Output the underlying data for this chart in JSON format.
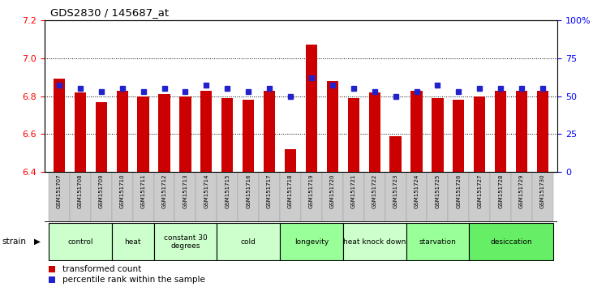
{
  "title": "GDS2830 / 145687_at",
  "samples": [
    "GSM151707",
    "GSM151708",
    "GSM151709",
    "GSM151710",
    "GSM151711",
    "GSM151712",
    "GSM151713",
    "GSM151714",
    "GSM151715",
    "GSM151716",
    "GSM151717",
    "GSM151718",
    "GSM151719",
    "GSM151720",
    "GSM151721",
    "GSM151722",
    "GSM151723",
    "GSM151724",
    "GSM151725",
    "GSM151726",
    "GSM151727",
    "GSM151728",
    "GSM151729",
    "GSM151730"
  ],
  "bar_values": [
    6.89,
    6.82,
    6.77,
    6.83,
    6.8,
    6.81,
    6.8,
    6.83,
    6.79,
    6.78,
    6.83,
    6.52,
    7.07,
    6.88,
    6.79,
    6.82,
    6.59,
    6.83,
    6.79,
    6.78,
    6.8,
    6.83,
    6.83,
    6.83
  ],
  "percentile_pct": [
    57,
    55,
    53,
    55,
    53,
    55,
    53,
    57,
    55,
    53,
    55,
    50,
    62,
    57,
    55,
    53,
    50,
    53,
    57,
    53,
    55,
    55,
    55,
    55
  ],
  "groups": [
    {
      "name": "control",
      "start": 0,
      "end": 2,
      "color": "#ccffcc"
    },
    {
      "name": "heat",
      "start": 3,
      "end": 4,
      "color": "#ccffcc"
    },
    {
      "name": "constant 30\ndegrees",
      "start": 5,
      "end": 7,
      "color": "#ccffcc"
    },
    {
      "name": "cold",
      "start": 8,
      "end": 10,
      "color": "#ccffcc"
    },
    {
      "name": "longevity",
      "start": 11,
      "end": 13,
      "color": "#99ff99"
    },
    {
      "name": "heat knock down",
      "start": 14,
      "end": 16,
      "color": "#ccffcc"
    },
    {
      "name": "starvation",
      "start": 17,
      "end": 19,
      "color": "#99ff99"
    },
    {
      "name": "desiccation",
      "start": 20,
      "end": 23,
      "color": "#66ee66"
    }
  ],
  "ylim_left": [
    6.4,
    7.2
  ],
  "ylim_right": [
    0,
    100
  ],
  "yticks_left": [
    6.4,
    6.6,
    6.8,
    7.0,
    7.2
  ],
  "yticks_right": [
    0,
    25,
    50,
    75,
    100
  ],
  "bar_color": "#cc0000",
  "dot_color": "#2222cc",
  "bg_color": "#ffffff",
  "legend_red": "transformed count",
  "legend_blue": "percentile rank within the sample"
}
